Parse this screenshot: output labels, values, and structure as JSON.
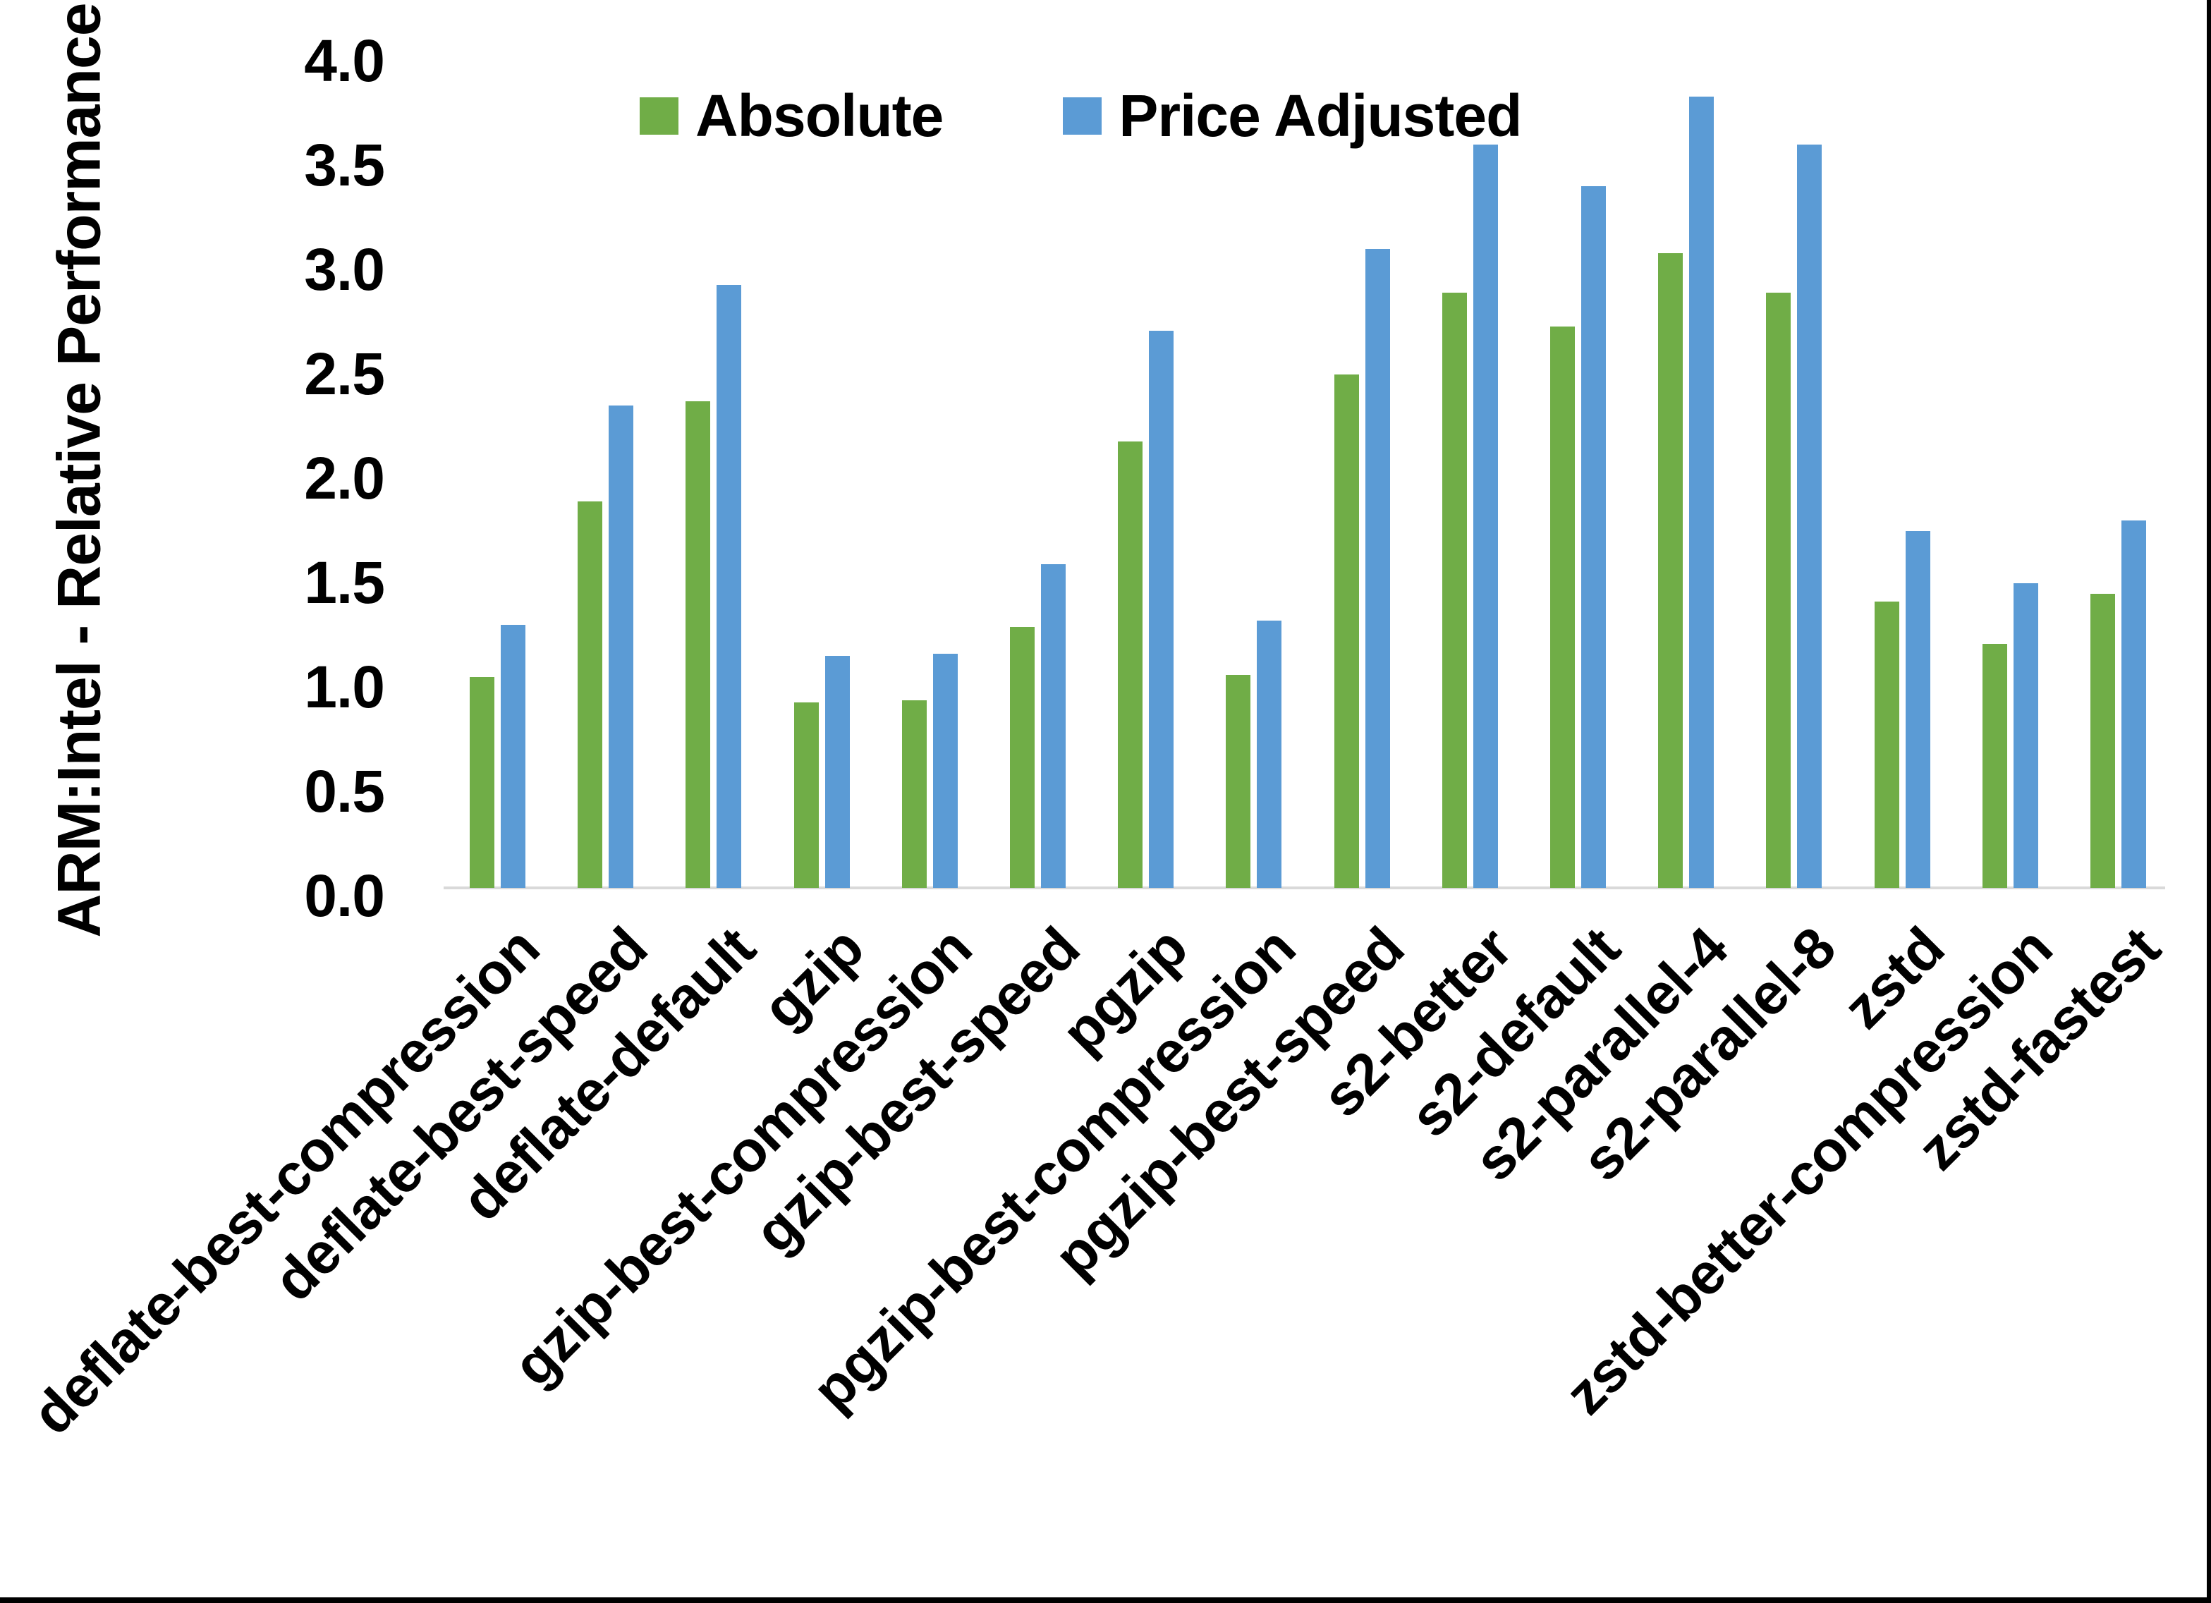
{
  "chart_data": {
    "type": "bar",
    "title": "",
    "ylabel": "ARM:Intel - Relative Performance",
    "xlabel": "",
    "ylim": [
      0.0,
      4.0
    ],
    "ytick_labels": [
      "0.0",
      "0.5",
      "1.0",
      "1.5",
      "2.0",
      "2.5",
      "3.0",
      "3.5",
      "4.0"
    ],
    "grid": "off",
    "legend_position": "top-center",
    "categories": [
      "deflate-best-compression",
      "deflate-best-speed",
      "deflate-default",
      "gzip",
      "gzip-best-compression",
      "gzip-best-speed",
      "pgzip",
      "pgzip-best-compression",
      "pgzip-best-speed",
      "s2-better",
      "s2-default",
      "s2-parallel-4",
      "s2-parallel-8",
      "zstd",
      "zstd-better-compression",
      "zstd-fastest"
    ],
    "series": [
      {
        "name": "Absolute",
        "color": "#70AD47",
        "values": [
          1.01,
          1.85,
          2.33,
          0.89,
          0.9,
          1.25,
          2.14,
          1.02,
          2.46,
          2.85,
          2.69,
          3.04,
          2.85,
          1.37,
          1.17,
          1.41
        ]
      },
      {
        "name": "Price Adjusted",
        "color": "#5B9BD5",
        "values": [
          1.26,
          2.31,
          2.89,
          1.11,
          1.12,
          1.55,
          2.67,
          1.28,
          3.06,
          3.56,
          3.36,
          3.79,
          3.56,
          1.71,
          1.46,
          1.76
        ]
      }
    ],
    "axis_line_color": "#D9D9D9",
    "text_color": "#000000",
    "background_color": "#FFFFFF"
  }
}
